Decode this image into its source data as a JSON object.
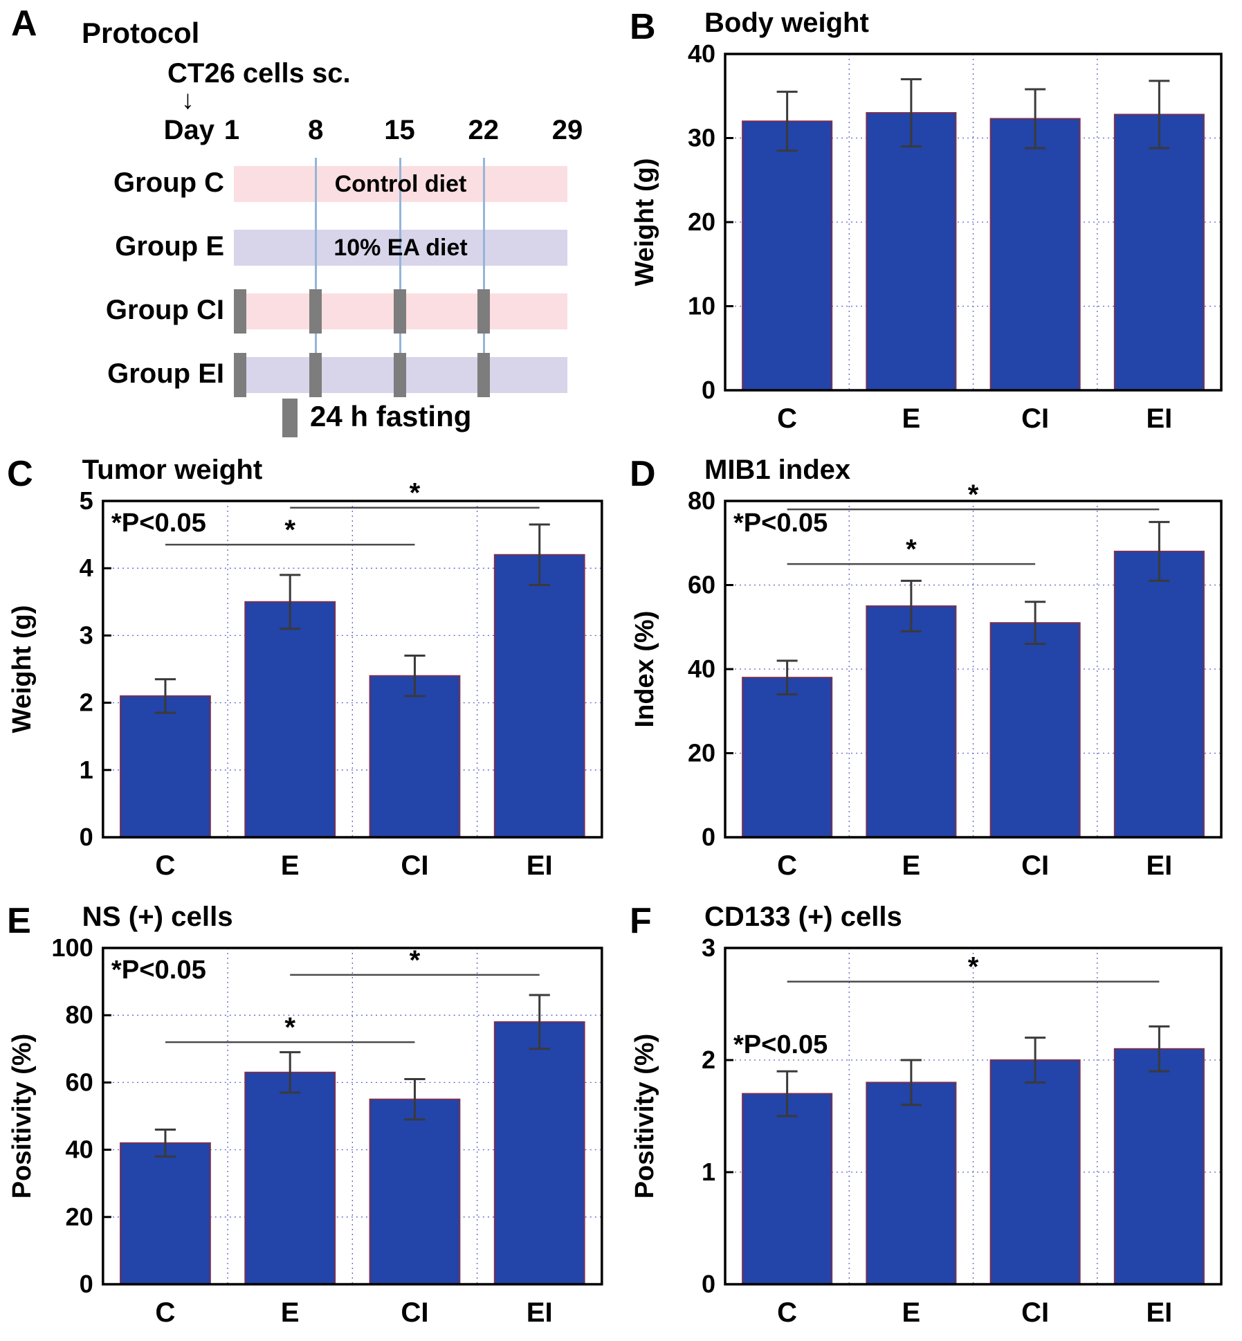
{
  "colors": {
    "bar_fill": "#2344a8",
    "bar_stroke": "#7b3050",
    "error_bar": "#3a3a3a",
    "grid_line": "#5b63c9",
    "axis": "#000000",
    "sig_line": "#4a4a4a",
    "control_band": "#fbdee1",
    "ea_band": "#d8d4ea",
    "fasting_bar": "#7d7d7d",
    "day_line": "#95b5d8"
  },
  "protocol": {
    "panel_letter": "A",
    "title": "Protocol",
    "injection_label": "CT26 cells sc.",
    "arrow_glyph": "↓",
    "day_axis_label": "Day",
    "days": [
      1,
      8,
      15,
      22,
      29
    ],
    "rows": [
      {
        "group": "Group C",
        "diet": "control",
        "band_label": "Control diet",
        "fasting_days": []
      },
      {
        "group": "Group E",
        "diet": "ea",
        "band_label": "10% EA diet",
        "fasting_days": []
      },
      {
        "group": "Group CI",
        "diet": "control",
        "band_label": "",
        "fasting_days": [
          1,
          8,
          15,
          22
        ]
      },
      {
        "group": "Group EI",
        "diet": "ea",
        "band_label": "",
        "fasting_days": [
          1,
          8,
          15,
          22
        ]
      }
    ],
    "legend_label": "24 h fasting"
  },
  "chart_data": [
    {
      "type": "bar",
      "panel_letter": "B",
      "title": "Body weight",
      "ylabel": "Weight (g)",
      "xlabel": "",
      "categories": [
        "C",
        "E",
        "CI",
        "EI"
      ],
      "values": [
        32,
        33,
        32.3,
        32.8
      ],
      "errors": [
        3.5,
        4,
        3.5,
        4
      ],
      "ylim": [
        0,
        40
      ],
      "yticks": [
        0,
        10,
        20,
        30,
        40
      ],
      "grid": true,
      "legend": "none",
      "annotation": "",
      "sig_lines": []
    },
    {
      "type": "bar",
      "panel_letter": "C",
      "title": "Tumor weight",
      "ylabel": "Weight (g)",
      "xlabel": "",
      "categories": [
        "C",
        "E",
        "CI",
        "EI"
      ],
      "values": [
        2.1,
        3.5,
        2.4,
        4.2
      ],
      "errors": [
        0.25,
        0.4,
        0.3,
        0.45
      ],
      "ylim": [
        0,
        5
      ],
      "yticks": [
        0,
        1,
        2,
        3,
        4,
        5
      ],
      "grid": true,
      "legend": "none",
      "annotation": "*P<0.05",
      "sig_lines": [
        {
          "from": "C",
          "to": "CI",
          "y": 4.35,
          "label": "*"
        },
        {
          "from": "E",
          "to": "EI",
          "y": 4.9,
          "label": "*"
        }
      ]
    },
    {
      "type": "bar",
      "panel_letter": "D",
      "title": "MIB1 index",
      "ylabel": "Index (%)",
      "xlabel": "",
      "categories": [
        "C",
        "E",
        "CI",
        "EI"
      ],
      "values": [
        38,
        55,
        51,
        68
      ],
      "errors": [
        4,
        6,
        5,
        7
      ],
      "ylim": [
        0,
        80
      ],
      "yticks": [
        0,
        20,
        40,
        60,
        80
      ],
      "grid": true,
      "legend": "none",
      "annotation": "*P<0.05",
      "sig_lines": [
        {
          "from": "C",
          "to": "CI",
          "y": 65,
          "label": "*"
        },
        {
          "from": "C",
          "to": "EI",
          "y": 78,
          "label": "*"
        }
      ]
    },
    {
      "type": "bar",
      "panel_letter": "E",
      "title": "NS (+) cells",
      "ylabel": "Positivity (%)",
      "xlabel": "",
      "categories": [
        "C",
        "E",
        "CI",
        "EI"
      ],
      "values": [
        42,
        63,
        55,
        78
      ],
      "errors": [
        4,
        6,
        6,
        8
      ],
      "ylim": [
        0,
        100
      ],
      "yticks": [
        0,
        20,
        40,
        60,
        80,
        100
      ],
      "grid": true,
      "legend": "none",
      "annotation": "*P<0.05",
      "sig_lines": [
        {
          "from": "C",
          "to": "CI",
          "y": 72,
          "label": "*"
        },
        {
          "from": "E",
          "to": "EI",
          "y": 92,
          "label": "*"
        }
      ]
    },
    {
      "type": "bar",
      "panel_letter": "F",
      "title": "CD133 (+) cells",
      "ylabel": "Positivity (%)",
      "xlabel": "",
      "categories": [
        "C",
        "E",
        "CI",
        "EI"
      ],
      "values": [
        1.7,
        1.8,
        2.0,
        2.1
      ],
      "errors": [
        0.2,
        0.2,
        0.2,
        0.2
      ],
      "ylim": [
        0,
        3
      ],
      "yticks": [
        0,
        1,
        2,
        3
      ],
      "grid": true,
      "legend": "none",
      "annotation": "*P<0.05",
      "annotation_low": true,
      "sig_lines": [
        {
          "from": "C",
          "to": "EI",
          "y": 2.7,
          "label": "*"
        }
      ]
    }
  ]
}
